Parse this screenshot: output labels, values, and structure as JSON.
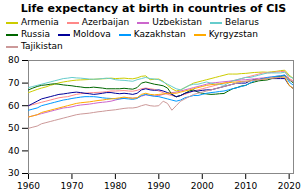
{
  "chart_data": {
    "type": "line",
    "title": "Life expectancy at birth in countries of CIS",
    "x": [
      1960,
      1961,
      1962,
      1963,
      1964,
      1965,
      1966,
      1967,
      1968,
      1969,
      1970,
      1971,
      1972,
      1973,
      1974,
      1975,
      1976,
      1977,
      1978,
      1979,
      1980,
      1981,
      1982,
      1983,
      1984,
      1985,
      1986,
      1987,
      1988,
      1989,
      1990,
      1991,
      1992,
      1993,
      1994,
      1995,
      1996,
      1997,
      1998,
      1999,
      2000,
      2001,
      2002,
      2003,
      2004,
      2005,
      2006,
      2007,
      2008,
      2009,
      2010,
      2011,
      2012,
      2013,
      2014,
      2015,
      2016,
      2017,
      2018,
      2019,
      2020,
      2021
    ],
    "series": [
      {
        "name": "Armenia",
        "color": "#cccc00",
        "values": [
          65.8,
          66.5,
          67.2,
          67.8,
          68.3,
          69.0,
          69.5,
          70.1,
          70.5,
          70.8,
          71.1,
          71.3,
          71.4,
          71.5,
          71.6,
          71.7,
          71.8,
          71.9,
          72.0,
          72.2,
          72.0,
          72.1,
          72.2,
          72.0,
          71.9,
          72.3,
          73.0,
          73.2,
          71.5,
          71.7,
          71.8,
          70.8,
          69.0,
          67.5,
          66.5,
          67.0,
          68.0,
          69.0,
          70.0,
          70.5,
          71.0,
          71.5,
          72.0,
          72.5,
          73.0,
          73.5,
          74.0,
          74.0,
          74.0,
          74.2,
          74.3,
          74.5,
          74.7,
          74.8,
          74.9,
          74.8,
          75.0,
          75.2,
          75.5,
          75.7,
          73.5,
          72.0
        ]
      },
      {
        "name": "Azerbaijan",
        "color": "#ff8888",
        "values": [
          60.0,
          60.5,
          61.0,
          61.5,
          62.0,
          62.5,
          63.0,
          63.5,
          63.8,
          64.0,
          64.5,
          65.0,
          65.3,
          65.5,
          65.7,
          65.8,
          65.9,
          66.0,
          66.2,
          66.5,
          66.5,
          66.6,
          66.7,
          66.5,
          66.4,
          66.8,
          67.5,
          67.8,
          67.5,
          67.2,
          66.5,
          65.8,
          65.0,
          64.5,
          64.0,
          64.5,
          65.0,
          65.8,
          66.5,
          67.0,
          67.5,
          68.0,
          68.5,
          69.0,
          69.5,
          70.0,
          70.5,
          71.0,
          71.5,
          72.0,
          72.5,
          73.0,
          73.5,
          74.0,
          74.5,
          74.5,
          74.7,
          74.9,
          75.1,
          75.2,
          72.0,
          71.0
        ]
      },
      {
        "name": "Uzbekistan",
        "color": "#cc66cc",
        "values": [
          55.0,
          55.5,
          56.0,
          56.5,
          57.0,
          57.5,
          58.0,
          58.5,
          59.0,
          59.2,
          59.5,
          60.0,
          60.3,
          60.5,
          60.7,
          61.0,
          61.3,
          61.5,
          61.7,
          62.0,
          62.5,
          63.0,
          63.5,
          63.5,
          63.3,
          63.5,
          64.2,
          64.8,
          64.5,
          64.3,
          64.5,
          65.0,
          65.5,
          65.8,
          66.0,
          66.5,
          67.0,
          67.5,
          68.0,
          68.5,
          69.0,
          69.5,
          70.0,
          70.2,
          70.4,
          70.6,
          70.8,
          71.0,
          71.2,
          71.4,
          71.5,
          71.7,
          71.9,
          72.1,
          72.3,
          72.5,
          72.7,
          73.0,
          73.3,
          73.5,
          71.5,
          70.5
        ]
      },
      {
        "name": "Belarus",
        "color": "#66cccc",
        "values": [
          68.0,
          68.5,
          69.0,
          69.5,
          70.0,
          70.5,
          71.0,
          71.5,
          72.0,
          72.2,
          72.5,
          72.3,
          72.2,
          72.0,
          71.8,
          71.7,
          71.8,
          72.0,
          72.2,
          72.0,
          71.5,
          71.3,
          71.2,
          71.0,
          70.8,
          71.5,
          72.0,
          72.5,
          72.0,
          71.8,
          71.5,
          70.5,
          69.5,
          68.5,
          67.5,
          67.0,
          68.0,
          69.0,
          69.5,
          69.5,
          70.0,
          70.5,
          70.0,
          69.5,
          69.5,
          69.0,
          70.0,
          71.0,
          71.5,
          72.0,
          72.5,
          72.5,
          73.0,
          73.5,
          74.0,
          74.5,
          74.5,
          74.5,
          74.5,
          74.8,
          73.0,
          72.0
        ]
      },
      {
        "name": "Russia",
        "color": "#006600",
        "values": [
          67.0,
          67.8,
          68.5,
          69.0,
          69.2,
          69.5,
          69.7,
          69.5,
          69.2,
          69.0,
          68.8,
          68.5,
          68.3,
          68.0,
          68.0,
          68.2,
          68.0,
          67.8,
          67.5,
          67.5,
          67.5,
          67.5,
          67.7,
          67.5,
          67.3,
          68.0,
          70.0,
          70.5,
          70.0,
          69.5,
          69.2,
          68.8,
          67.8,
          65.0,
          63.9,
          64.5,
          65.5,
          66.5,
          67.0,
          66.0,
          65.5,
          65.2,
          65.0,
          65.1,
          65.3,
          65.4,
          66.5,
          67.5,
          68.0,
          68.7,
          69.0,
          70.0,
          70.5,
          71.0,
          71.2,
          71.4,
          72.0,
          72.7,
          72.9,
          73.3,
          71.5,
          70.0
        ]
      },
      {
        "name": "Moldova",
        "color": "#000099",
        "values": [
          60.0,
          61.0,
          62.0,
          63.0,
          63.5,
          64.0,
          64.5,
          65.0,
          65.2,
          65.5,
          65.8,
          66.0,
          65.8,
          65.5,
          65.3,
          65.0,
          65.2,
          65.5,
          65.8,
          65.8,
          65.5,
          65.3,
          65.5,
          65.3,
          65.0,
          65.5,
          67.0,
          67.5,
          67.0,
          66.8,
          67.0,
          66.5,
          65.8,
          65.0,
          64.0,
          64.5,
          65.5,
          66.0,
          66.5,
          66.5,
          66.8,
          67.0,
          67.0,
          67.5,
          68.0,
          68.5,
          69.0,
          69.5,
          70.0,
          70.0,
          70.0,
          71.0,
          71.5,
          71.5,
          72.0,
          72.0,
          72.0,
          72.0,
          72.0,
          72.0,
          69.0,
          67.5
        ]
      },
      {
        "name": "Kazakhstan",
        "color": "#0099ff",
        "values": [
          58.0,
          58.5,
          59.0,
          60.0,
          60.5,
          61.0,
          61.5,
          62.0,
          62.5,
          62.8,
          63.2,
          63.5,
          63.8,
          64.0,
          64.0,
          64.0,
          63.8,
          63.5,
          63.3,
          63.2,
          63.0,
          63.0,
          63.2,
          63.0,
          62.8,
          63.2,
          64.5,
          65.0,
          64.5,
          64.2,
          64.0,
          63.5,
          63.0,
          62.5,
          62.0,
          62.5,
          63.5,
          64.0,
          64.5,
          64.5,
          65.0,
          65.5,
          65.8,
          66.0,
          66.3,
          66.5,
          67.0,
          67.5,
          68.0,
          68.5,
          69.0,
          70.0,
          71.0,
          71.5,
          72.0,
          72.5,
          72.7,
          73.0,
          73.2,
          73.6,
          70.5,
          69.0
        ]
      },
      {
        "name": "Kyrgyzstan",
        "color": "#ffaa00",
        "values": [
          55.0,
          55.5,
          56.0,
          57.0,
          57.5,
          58.0,
          58.5,
          59.0,
          59.5,
          60.0,
          60.5,
          61.0,
          61.3,
          61.5,
          61.7,
          62.0,
          62.3,
          62.5,
          62.8,
          63.0,
          63.2,
          63.5,
          63.8,
          63.5,
          63.3,
          63.5,
          65.0,
          65.5,
          65.0,
          64.8,
          65.0,
          65.2,
          65.5,
          65.5,
          65.5,
          66.0,
          66.5,
          67.0,
          67.5,
          68.0,
          68.5,
          69.0,
          69.3,
          69.5,
          69.7,
          70.0,
          70.2,
          70.4,
          70.5,
          70.7,
          70.8,
          71.0,
          71.3,
          71.5,
          71.7,
          72.0,
          72.2,
          72.4,
          72.5,
          72.7,
          69.0,
          67.5
        ]
      },
      {
        "name": "Tajikistan",
        "color": "#cc9999",
        "values": [
          50.0,
          50.5,
          51.0,
          52.0,
          52.5,
          53.0,
          53.5,
          54.0,
          54.5,
          55.0,
          55.5,
          56.0,
          56.3,
          56.5,
          56.7,
          57.0,
          57.3,
          57.5,
          57.8,
          58.0,
          58.2,
          58.5,
          58.8,
          59.0,
          59.0,
          59.3,
          60.0,
          60.5,
          60.0,
          59.8,
          60.0,
          62.0,
          61.0,
          58.0,
          60.0,
          62.0,
          63.0,
          64.0,
          65.0,
          65.5,
          66.0,
          66.5,
          67.0,
          67.5,
          68.0,
          68.5,
          69.0,
          69.5,
          70.0,
          70.5,
          70.8,
          71.0,
          71.2,
          71.5,
          71.7,
          72.0,
          72.2,
          72.4,
          72.6,
          72.8,
          71.5,
          70.5
        ]
      }
    ],
    "xlim": [
      1960,
      2021
    ],
    "ylim": [
      30,
      80
    ],
    "xticks": [
      1960,
      1970,
      1980,
      1990,
      2000,
      2010,
      2020
    ],
    "yticks": [
      30,
      40,
      50,
      60,
      70,
      80
    ],
    "grid": false,
    "legend": "upper left"
  }
}
